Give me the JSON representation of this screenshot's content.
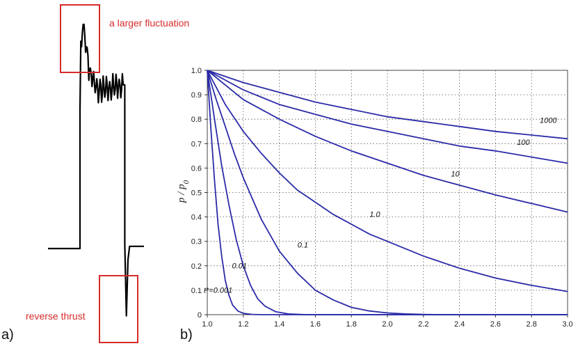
{
  "panels": {
    "a": {
      "label": "a)",
      "annotations": {
        "top": "a larger fluctuation",
        "bottom": "reverse thrust"
      },
      "annotation_color": "#d62b2b",
      "trace_color": "#000000"
    },
    "b": {
      "label": "b)"
    }
  },
  "chart_data": [
    {
      "type": "line",
      "panel": "a",
      "title": "",
      "xlabel": "",
      "ylabel": "",
      "axes_visible": false,
      "annotations": [
        "a larger fluctuation",
        "reverse thrust"
      ],
      "series": [
        {
          "values": [
            0,
            0,
            0,
            0,
            0,
            0,
            0,
            0,
            0,
            0,
            0,
            0,
            0,
            0,
            0,
            0,
            0,
            0,
            0,
            0,
            0.62,
            0.9,
            1.0,
            0.95,
            0.9,
            0.86,
            0.8,
            0.78,
            0.76,
            0.74,
            0.72,
            0.72,
            0.7,
            0.73,
            0.69,
            0.72,
            0.7,
            0.73,
            0.71,
            0.72,
            0.7,
            0.73,
            0.71,
            0.74,
            0.72,
            0.73,
            0.71,
            0.73,
            0.02,
            -0.3,
            -0.05,
            0.01,
            0.01,
            0.01,
            0.01,
            0.01,
            0.01,
            0.01,
            0.01,
            0.01,
            0.01
          ]
        }
      ]
    },
    {
      "type": "line",
      "panel": "b",
      "title": "",
      "xlabel": "",
      "ylabel": "p / p0",
      "xlim": [
        1.0,
        3.0
      ],
      "ylim": [
        0,
        1.0
      ],
      "x_ticks": [
        "1.0",
        "1.2",
        "1.4",
        "1.6",
        "1.8",
        "2.0",
        "2.2",
        "2.4",
        "2.6",
        "2.8",
        "3.0"
      ],
      "y_ticks": [
        "0",
        "0.1",
        "0.2",
        "0.3",
        "0.4",
        "0.5",
        "0.6",
        "0.7",
        "0.8",
        "0.9",
        "1.0"
      ],
      "grid": true,
      "line_color": "#2a2aa8",
      "series": [
        {
          "name": "t*=0.001",
          "x": [
            1.0,
            1.02,
            1.04,
            1.06,
            1.08,
            1.1,
            1.12,
            1.14,
            1.17,
            1.2,
            1.25,
            1.3,
            3.0
          ],
          "y": [
            1.0,
            0.76,
            0.55,
            0.37,
            0.24,
            0.14,
            0.08,
            0.04,
            0.015,
            0.005,
            0.001,
            0.0,
            0.0
          ]
        },
        {
          "name": "0.01",
          "x": [
            1.0,
            1.04,
            1.08,
            1.12,
            1.16,
            1.2,
            1.24,
            1.28,
            1.32,
            1.38,
            1.45,
            1.55,
            3.0
          ],
          "y": [
            1.0,
            0.8,
            0.61,
            0.45,
            0.31,
            0.2,
            0.12,
            0.065,
            0.035,
            0.012,
            0.003,
            0.0,
            0.0
          ]
        },
        {
          "name": "0.1",
          "x": [
            1.0,
            1.05,
            1.1,
            1.15,
            1.2,
            1.3,
            1.4,
            1.5,
            1.6,
            1.7,
            1.8,
            1.9,
            2.0,
            2.1,
            2.2,
            2.3,
            3.0
          ],
          "y": [
            1.0,
            0.88,
            0.77,
            0.66,
            0.56,
            0.39,
            0.26,
            0.17,
            0.1,
            0.06,
            0.03,
            0.015,
            0.007,
            0.003,
            0.001,
            0.0,
            0.0
          ]
        },
        {
          "name": "1.0",
          "x": [
            1.0,
            1.1,
            1.2,
            1.3,
            1.4,
            1.5,
            1.6,
            1.7,
            1.8,
            1.9,
            2.0,
            2.2,
            2.4,
            2.6,
            2.8,
            3.0
          ],
          "y": [
            1.0,
            0.86,
            0.75,
            0.66,
            0.58,
            0.51,
            0.46,
            0.41,
            0.37,
            0.33,
            0.3,
            0.24,
            0.19,
            0.15,
            0.12,
            0.095
          ]
        },
        {
          "name": "10",
          "x": [
            1.0,
            1.2,
            1.4,
            1.6,
            1.8,
            2.0,
            2.2,
            2.4,
            2.6,
            2.8,
            3.0
          ],
          "y": [
            1.0,
            0.88,
            0.8,
            0.73,
            0.67,
            0.62,
            0.57,
            0.53,
            0.49,
            0.455,
            0.42
          ]
        },
        {
          "name": "100",
          "x": [
            1.0,
            1.2,
            1.4,
            1.6,
            1.8,
            2.0,
            2.2,
            2.4,
            2.6,
            2.8,
            3.0
          ],
          "y": [
            1.0,
            0.92,
            0.86,
            0.82,
            0.78,
            0.75,
            0.72,
            0.69,
            0.67,
            0.645,
            0.62
          ]
        },
        {
          "name": "1000",
          "x": [
            1.0,
            1.2,
            1.4,
            1.6,
            1.8,
            2.0,
            2.2,
            2.4,
            2.6,
            2.8,
            3.0
          ],
          "y": [
            1.0,
            0.95,
            0.91,
            0.87,
            0.84,
            0.81,
            0.79,
            0.77,
            0.75,
            0.735,
            0.72
          ]
        }
      ]
    }
  ]
}
